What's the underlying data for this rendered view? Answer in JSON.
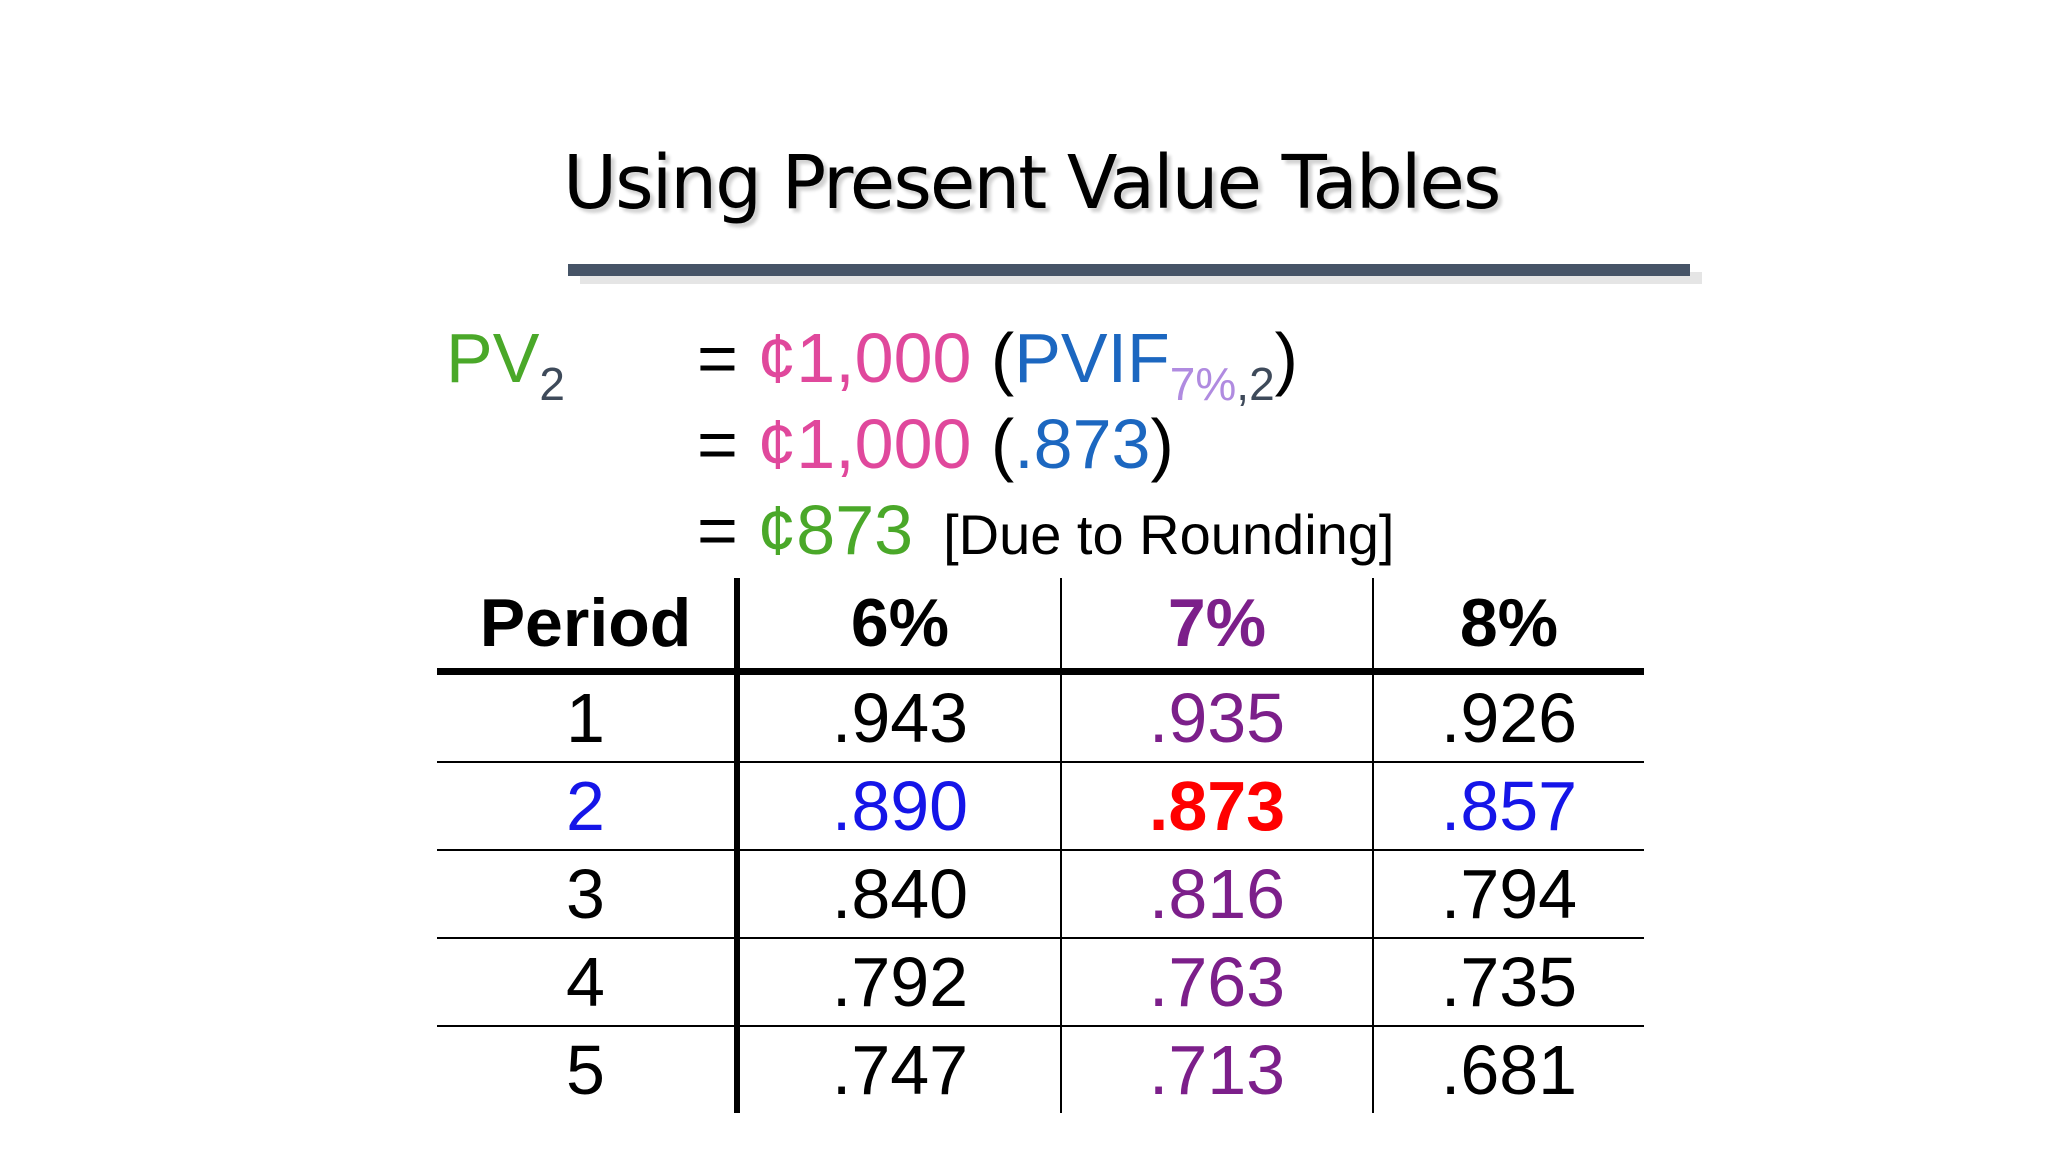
{
  "title": "Using Present Value Tables",
  "formula": {
    "pv": "PV",
    "pv_sub": "2",
    "line1": {
      "eq": "= ",
      "amount": "¢1,000",
      "open": " (",
      "fn": "PVIF",
      "sub_rate": "7%",
      "sub_comma": ",",
      "sub_period": "2",
      "close": ")"
    },
    "line2": {
      "eq": "= ",
      "amount": "¢1,000",
      "open": " (",
      "value": ".873",
      "close": ")"
    },
    "line3": {
      "eq": "= ",
      "amount": "¢873",
      "note": "[Due to Rounding]"
    }
  },
  "table": {
    "headers": [
      "Period",
      "6%",
      "7%",
      "8%"
    ],
    "rows": [
      [
        "1",
        ".943",
        ".935",
        ".926"
      ],
      [
        "2",
        ".890",
        ".873",
        ".857"
      ],
      [
        "3",
        ".840",
        ".816",
        ".794"
      ],
      [
        "4",
        ".792",
        ".763",
        ".735"
      ],
      [
        "5",
        ".747",
        ".713",
        ".681"
      ]
    ]
  },
  "colors": {
    "title_rule": "#465467",
    "pv_green": "#4aa829",
    "amount_pink": "#e0489c",
    "pvif_blue": "#1c67c0",
    "col_7_purple": "#7c1f8a",
    "row_2_blue": "#1515e8",
    "highlight_red": "#ff0000"
  }
}
